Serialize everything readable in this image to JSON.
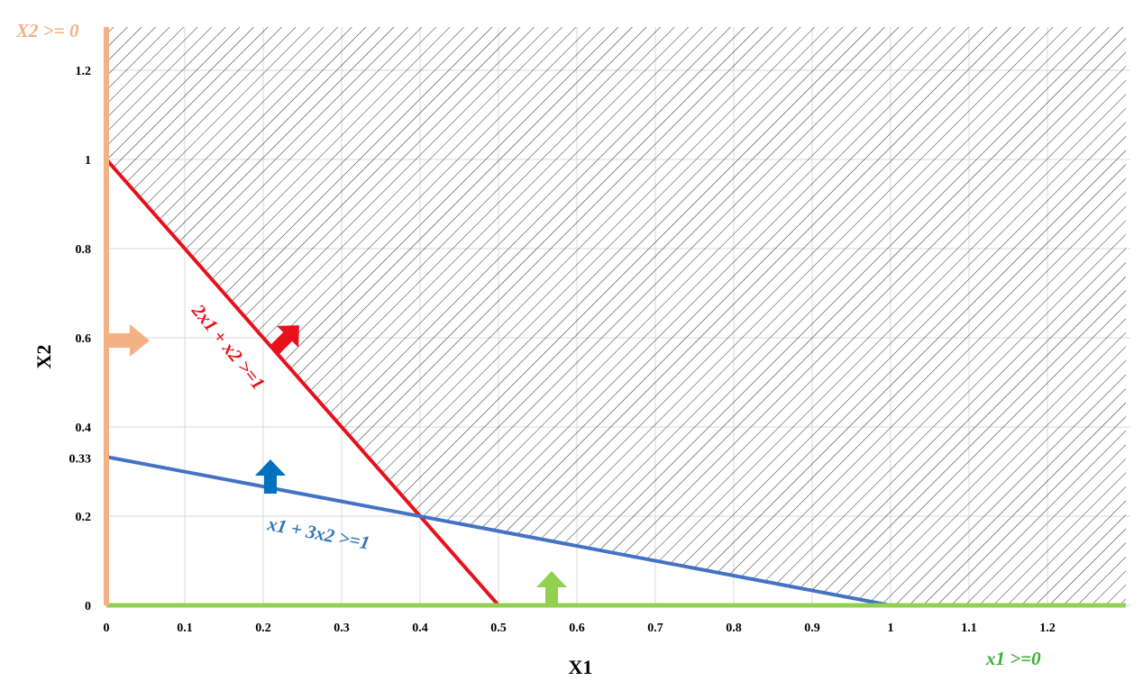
{
  "chart_data": {
    "type": "line",
    "title": "",
    "xlabel": "X1",
    "ylabel": "X2",
    "xlim": [
      0,
      1.3
    ],
    "ylim": [
      0,
      1.2
    ],
    "x_ticks": [
      0,
      0.1,
      0.2,
      0.3,
      0.4,
      0.5,
      0.6,
      0.7,
      0.8,
      0.9,
      1,
      1.1,
      1.2
    ],
    "x_tick_labels": [
      "0",
      "0.1",
      "0.2",
      "0.3",
      "0.4",
      "0.5",
      "0.6",
      "0.7",
      "0.8",
      "0.9",
      "1",
      "1.1",
      "1.2"
    ],
    "y_ticks": [
      0,
      0.2,
      0.33,
      0.4,
      0.6,
      0.8,
      1,
      1.2
    ],
    "y_tick_labels": [
      "0",
      "0.2",
      "0.33",
      "0.4",
      "0.6",
      "0.8",
      "1",
      "1.2"
    ],
    "grid": true,
    "series": [
      {
        "name": "2x1 + x2 >=1",
        "label": "2x1 + x2 >=1",
        "color": "#e8101a",
        "x": [
          0,
          0.5
        ],
        "y": [
          1,
          0
        ]
      },
      {
        "name": "x1 + 3x2 >=1",
        "label": "x1 + 3x2 >=1",
        "color": "#4472c4",
        "x": [
          0,
          1
        ],
        "y": [
          0.333,
          0
        ]
      },
      {
        "name": "x1 >=0",
        "label": "x1 >=0",
        "color": "#92d050",
        "x": [
          0,
          1.3
        ],
        "y": [
          0,
          0
        ]
      },
      {
        "name": "X2 >= 0",
        "label": "X2 >= 0",
        "color": "#f4b183",
        "x": [
          0,
          0
        ],
        "y": [
          0,
          1.3
        ]
      }
    ],
    "feasible_region": {
      "description": "hatched",
      "vertices": [
        [
          0,
          1
        ],
        [
          0.4,
          0.2
        ],
        [
          1,
          0
        ],
        [
          1.3,
          0
        ],
        [
          1.3,
          1.3
        ],
        [
          0,
          1.3
        ]
      ]
    },
    "annotations": {
      "arrows": [
        {
          "name": "red-constraint-arrow",
          "color": "#e8101a",
          "direction": "northeast"
        },
        {
          "name": "blue-constraint-arrow",
          "color": "#0070c0",
          "direction": "up"
        },
        {
          "name": "green-constraint-arrow",
          "color": "#92d050",
          "direction": "up"
        },
        {
          "name": "peach-constraint-arrow",
          "color": "#f4b183",
          "direction": "right"
        }
      ]
    }
  }
}
